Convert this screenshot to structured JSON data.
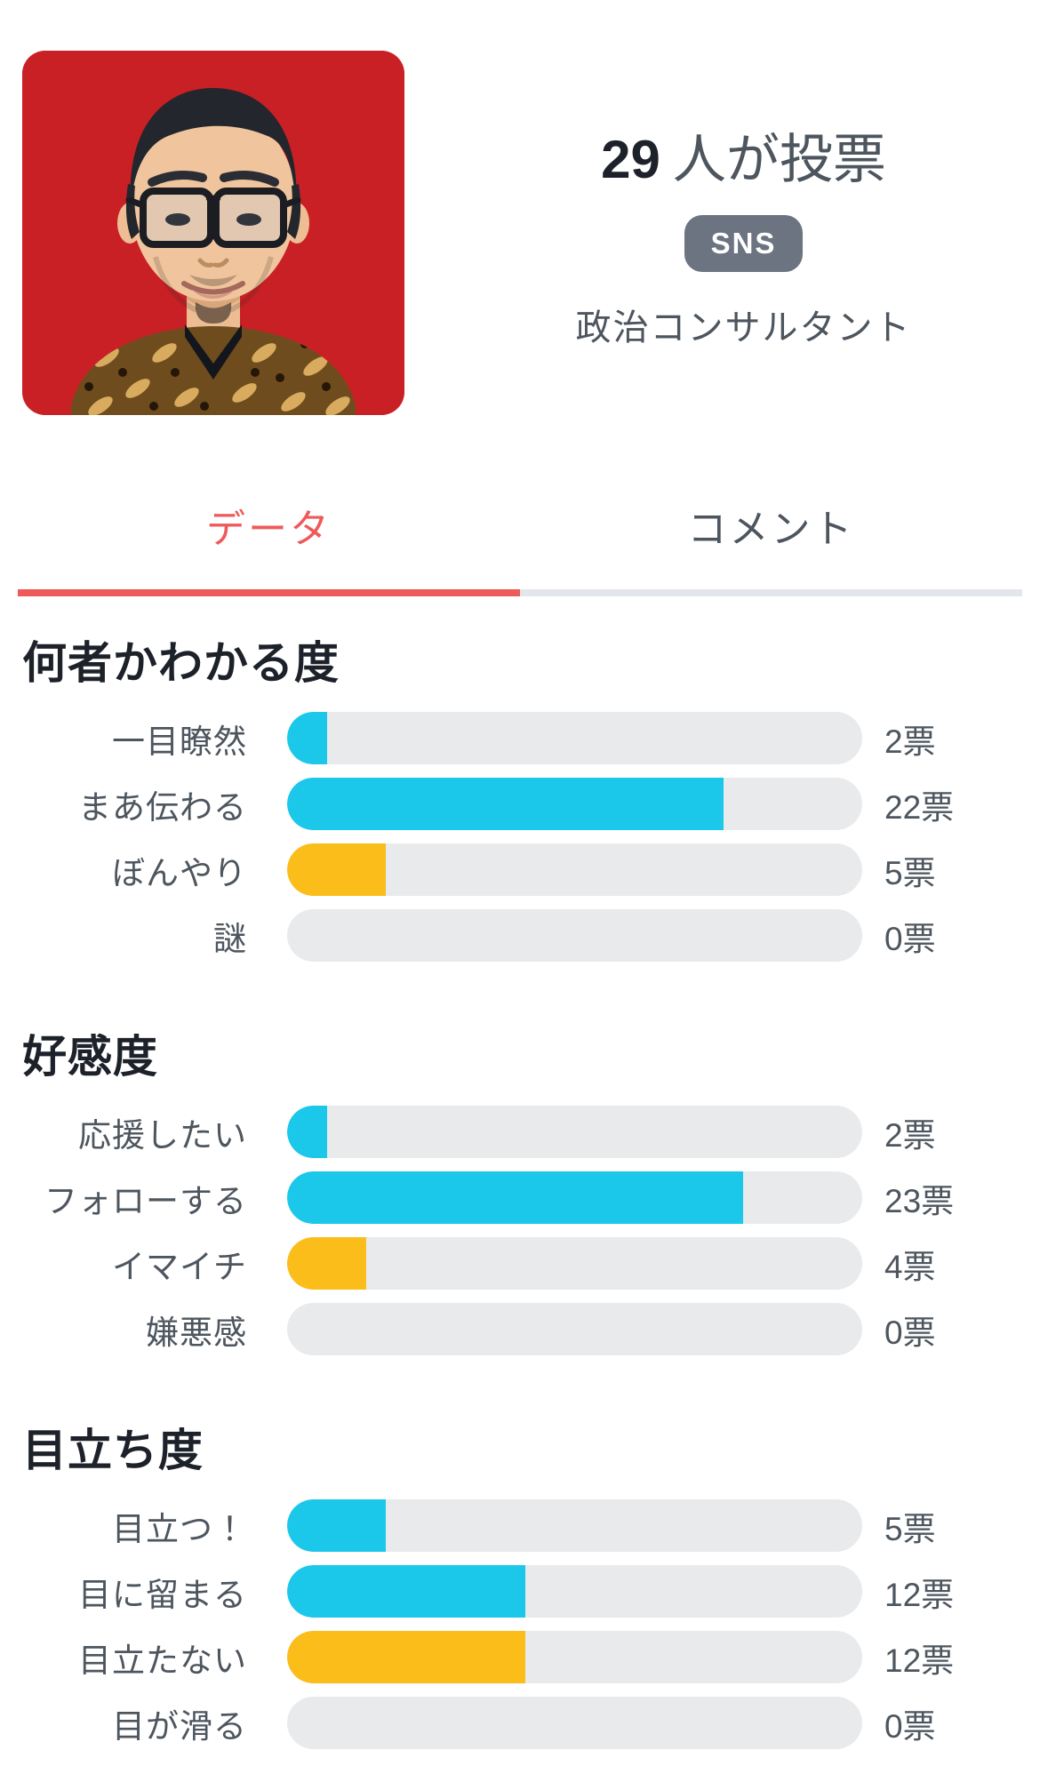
{
  "profile": {
    "vote_count": "29",
    "vote_count_suffix": "人が投票",
    "badge_label": "SNS",
    "occupation": "政治コンサルタント"
  },
  "tabs": {
    "data": {
      "label": "データ",
      "active": true
    },
    "comments": {
      "label": "コメント",
      "active": false
    }
  },
  "total_votes": 29,
  "colors": {
    "accent_red": "#ee5a5a",
    "cyan": "#1bc8ea",
    "yellow": "#fbbd1a",
    "track_gray": "#e8eaec",
    "badge_gray": "#6b7480",
    "avatar_background_red": "#c92026"
  },
  "sections": [
    {
      "title": "何者かわかる度",
      "rows": [
        {
          "label": "一目瞭然",
          "votes": 2,
          "votes_label": "2票",
          "pct": 6.9,
          "color": "cyan"
        },
        {
          "label": "まあ伝わる",
          "votes": 22,
          "votes_label": "22票",
          "pct": 75.9,
          "color": "cyan"
        },
        {
          "label": "ぼんやり",
          "votes": 5,
          "votes_label": "5票",
          "pct": 17.2,
          "color": "yellow"
        },
        {
          "label": "謎",
          "votes": 0,
          "votes_label": "0票",
          "pct": 0,
          "color": "none"
        }
      ]
    },
    {
      "title": "好感度",
      "rows": [
        {
          "label": "応援したい",
          "votes": 2,
          "votes_label": "2票",
          "pct": 6.9,
          "color": "cyan"
        },
        {
          "label": "フォローする",
          "votes": 23,
          "votes_label": "23票",
          "pct": 79.3,
          "color": "cyan"
        },
        {
          "label": "イマイチ",
          "votes": 4,
          "votes_label": "4票",
          "pct": 13.8,
          "color": "yellow"
        },
        {
          "label": "嫌悪感",
          "votes": 0,
          "votes_label": "0票",
          "pct": 0,
          "color": "none"
        }
      ]
    },
    {
      "title": "目立ち度",
      "rows": [
        {
          "label": "目立つ！",
          "votes": 5,
          "votes_label": "5票",
          "pct": 17.2,
          "color": "cyan"
        },
        {
          "label": "目に留まる",
          "votes": 12,
          "votes_label": "12票",
          "pct": 41.4,
          "color": "cyan"
        },
        {
          "label": "目立たない",
          "votes": 12,
          "votes_label": "12票",
          "pct": 41.4,
          "color": "yellow"
        },
        {
          "label": "目が滑る",
          "votes": 0,
          "votes_label": "0票",
          "pct": 0,
          "color": "none"
        }
      ]
    }
  ]
}
